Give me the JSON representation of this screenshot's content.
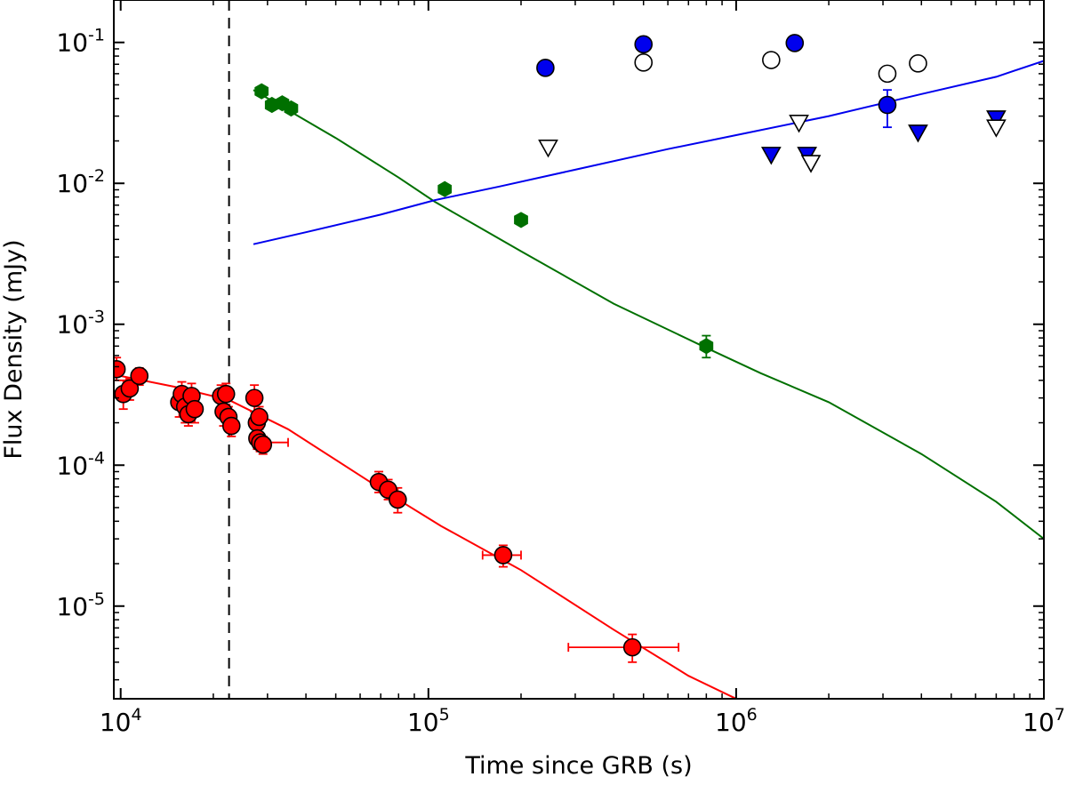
{
  "chart_data": {
    "type": "scatter",
    "xlabel": "Time since GRB (s)",
    "ylabel": "Flux Density (mJy)",
    "xscale": "log",
    "yscale": "log",
    "xlim": [
      9500,
      10000000
    ],
    "ylim": [
      2.2e-06,
      0.2
    ],
    "x_ticks": [
      {
        "value": 10000,
        "base": "10",
        "exp": "4"
      },
      {
        "value": 100000,
        "base": "10",
        "exp": "5"
      },
      {
        "value": 1000000,
        "base": "10",
        "exp": "6"
      },
      {
        "value": 10000000,
        "base": "10",
        "exp": "7"
      }
    ],
    "y_ticks": [
      {
        "value": 1e-05,
        "base": "10",
        "exp": "-5"
      },
      {
        "value": 0.0001,
        "base": "10",
        "exp": "-4"
      },
      {
        "value": 0.001,
        "base": "10",
        "exp": "-3"
      },
      {
        "value": 0.01,
        "base": "10",
        "exp": "-2"
      },
      {
        "value": 0.1,
        "base": "10",
        "exp": "-1"
      }
    ],
    "reference_line": {
      "x": 22500,
      "style": "dashed",
      "color": "#000000"
    },
    "series": [
      {
        "name": "red-points",
        "kind": "points",
        "marker": "circle",
        "color": "#ff0000",
        "edge": "#000000",
        "errcolor": "#ff0000",
        "points": [
          {
            "x": 9700,
            "y": 0.00048,
            "ylo": 0.0004,
            "yhi": 0.00058
          },
          {
            "x": 10200,
            "y": 0.00032,
            "ylo": 0.00025,
            "yhi": 0.0004
          },
          {
            "x": 10700,
            "y": 0.00035,
            "ylo": 0.00029,
            "yhi": 0.00041
          },
          {
            "x": 11500,
            "y": 0.00043,
            "ylo": 0.00037,
            "yhi": 0.00049
          },
          {
            "x": 15500,
            "y": 0.00028,
            "ylo": 0.00022,
            "yhi": 0.00035
          },
          {
            "x": 15800,
            "y": 0.00032,
            "ylo": 0.00026,
            "yhi": 0.00039
          },
          {
            "x": 16200,
            "y": 0.00026,
            "ylo": 0.0002,
            "yhi": 0.00032
          },
          {
            "x": 16600,
            "y": 0.00023,
            "ylo": 0.00019,
            "yhi": 0.00028
          },
          {
            "x": 17000,
            "y": 0.00031,
            "ylo": 0.00025,
            "yhi": 0.00038
          },
          {
            "x": 17400,
            "y": 0.00025,
            "ylo": 0.0002,
            "yhi": 0.0003
          },
          {
            "x": 21200,
            "y": 0.00031,
            "ylo": 0.00026,
            "yhi": 0.00037
          },
          {
            "x": 21600,
            "y": 0.00024,
            "ylo": 0.00019,
            "yhi": 0.00029
          },
          {
            "x": 22000,
            "y": 0.00032,
            "ylo": 0.00027,
            "yhi": 0.00038
          },
          {
            "x": 22400,
            "y": 0.00022,
            "ylo": 0.00018,
            "yhi": 0.00026
          },
          {
            "x": 22900,
            "y": 0.00019,
            "ylo": 0.00016,
            "yhi": 0.00022
          },
          {
            "x": 27200,
            "y": 0.0003,
            "ylo": 0.00024,
            "yhi": 0.00037
          },
          {
            "x": 27700,
            "y": 0.0002,
            "ylo": 0.00016,
            "yhi": 0.00024
          },
          {
            "x": 28200,
            "y": 0.00022,
            "ylo": 0.00018,
            "yhi": 0.00026
          },
          {
            "x": 27800,
            "y": 0.000155,
            "ylo": 0.00013,
            "yhi": 0.00018
          },
          {
            "x": 28400,
            "y": 0.000145,
            "ylo": 0.000125,
            "yhi": 0.000165,
            "xlo": 27000,
            "xhi": 35000
          },
          {
            "x": 29000,
            "y": 0.00014,
            "ylo": 0.00012,
            "yhi": 0.00016
          },
          {
            "x": 69000,
            "y": 7.6e-05,
            "ylo": 6.4e-05,
            "yhi": 9e-05
          },
          {
            "x": 74000,
            "y": 6.7e-05,
            "ylo": 5.7e-05,
            "yhi": 7.9e-05
          },
          {
            "x": 79500,
            "y": 5.7e-05,
            "ylo": 4.6e-05,
            "yhi": 6.9e-05
          },
          {
            "x": 175000,
            "y": 2.3e-05,
            "ylo": 1.9e-05,
            "yhi": 2.7e-05,
            "xlo": 150000,
            "xhi": 200000
          },
          {
            "x": 460000,
            "y": 5.1e-06,
            "ylo": 4e-06,
            "yhi": 6.3e-06,
            "xlo": 285000,
            "xhi": 650000
          }
        ]
      },
      {
        "name": "green-points",
        "kind": "points",
        "marker": "hexagon",
        "color": "#007000",
        "edge": "#007000",
        "points": [
          {
            "x": 28700,
            "y": 0.045
          },
          {
            "x": 31000,
            "y": 0.036
          },
          {
            "x": 33500,
            "y": 0.037
          },
          {
            "x": 35800,
            "y": 0.034
          },
          {
            "x": 113000,
            "y": 0.0091
          },
          {
            "x": 200000,
            "y": 0.0055
          },
          {
            "x": 800000,
            "y": 0.0007,
            "ylo": 0.00058,
            "yhi": 0.00083
          }
        ]
      },
      {
        "name": "blue-circles",
        "kind": "points",
        "marker": "circle",
        "color": "#0000ee",
        "edge": "#000000",
        "points": [
          {
            "x": 240000,
            "y": 0.066
          },
          {
            "x": 500000,
            "y": 0.097
          },
          {
            "x": 1550000,
            "y": 0.099
          },
          {
            "x": 3100000,
            "y": 0.036,
            "ylo": 0.025,
            "yhi": 0.046
          }
        ]
      },
      {
        "name": "open-circles",
        "kind": "points",
        "marker": "circle",
        "color": "#ffffff",
        "edge": "#000000",
        "points": [
          {
            "x": 500000,
            "y": 0.072
          },
          {
            "x": 1300000,
            "y": 0.075
          },
          {
            "x": 3100000,
            "y": 0.06
          },
          {
            "x": 3900000,
            "y": 0.071
          }
        ]
      },
      {
        "name": "blue-triangles",
        "kind": "points",
        "marker": "triangle-down",
        "color": "#0000ee",
        "edge": "#000000",
        "points": [
          {
            "x": 1300000,
            "y": 0.016
          },
          {
            "x": 1700000,
            "y": 0.016
          },
          {
            "x": 3900000,
            "y": 0.023
          },
          {
            "x": 7000000,
            "y": 0.029
          }
        ]
      },
      {
        "name": "open-triangles",
        "kind": "points",
        "marker": "triangle-down",
        "color": "#ffffff",
        "edge": "#000000",
        "points": [
          {
            "x": 245000,
            "y": 0.018
          },
          {
            "x": 1600000,
            "y": 0.027
          },
          {
            "x": 1750000,
            "y": 0.014
          },
          {
            "x": 7000000,
            "y": 0.025
          }
        ]
      },
      {
        "name": "red-model",
        "kind": "line",
        "color": "#ff0000",
        "x": [
          9500,
          15000,
          22500,
          35000,
          70000,
          110000,
          200000,
          400000,
          700000,
          1000000,
          1050000
        ],
        "y": [
          0.00044,
          0.00036,
          0.00029,
          0.00018,
          6.8e-05,
          3.7e-05,
          1.8e-05,
          6.8e-06,
          3.2e-06,
          2.2e-06,
          2e-06
        ]
      },
      {
        "name": "green-model",
        "kind": "line",
        "color": "#007000",
        "x": [
          27000,
          50000,
          80000,
          105000,
          200000,
          400000,
          800000,
          1200000,
          2000000,
          4000000,
          7000000,
          10000000
        ],
        "y": [
          0.046,
          0.021,
          0.011,
          0.0074,
          0.0033,
          0.0014,
          0.00068,
          0.00045,
          0.00028,
          0.00012,
          5.5e-05,
          3e-05
        ]
      },
      {
        "name": "blue-model",
        "kind": "line",
        "color": "#0000ee",
        "x": [
          27000,
          40000,
          70000,
          105000,
          170000,
          300000,
          600000,
          1000000,
          2000000,
          4000000,
          7000000,
          10000000
        ],
        "y": [
          0.0037,
          0.0045,
          0.006,
          0.0076,
          0.0095,
          0.0125,
          0.0175,
          0.022,
          0.03,
          0.043,
          0.057,
          0.074
        ]
      }
    ]
  }
}
